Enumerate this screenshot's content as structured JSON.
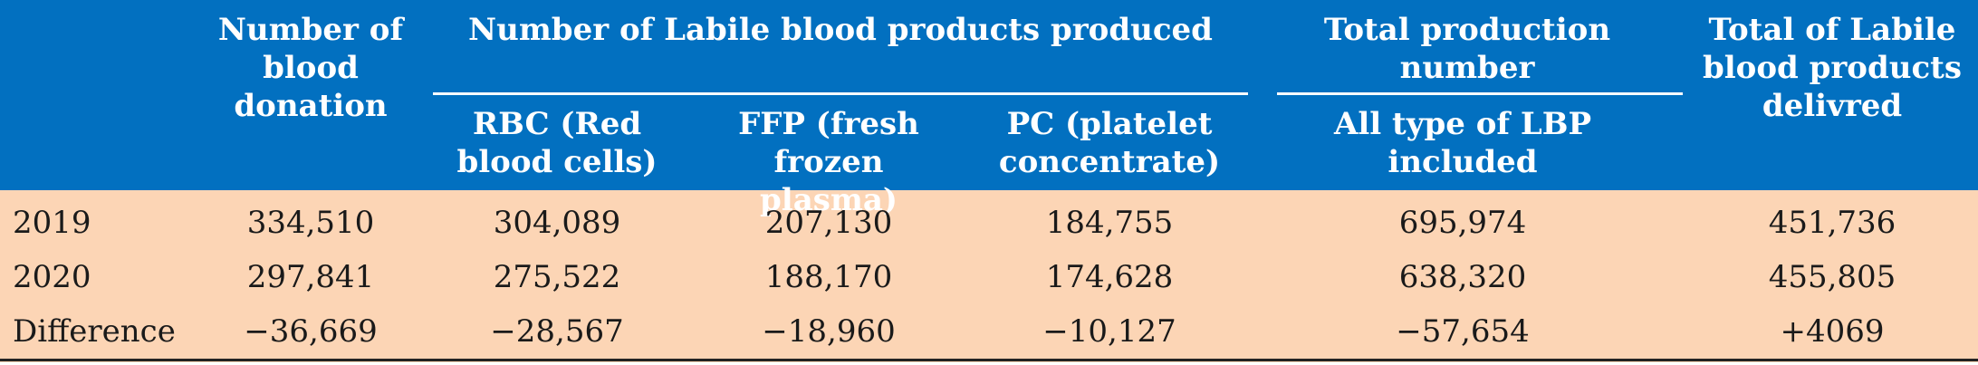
{
  "table": {
    "headers": {
      "donation": "Number of blood donation",
      "group_lbp": "Number of Labile blood products produced",
      "group_total": "Total production number",
      "delivered": "Total of Labile blood products delivred",
      "rbc": "RBC (Red blood cells)",
      "ffp": "FFP (fresh frozen plasma)",
      "pc": "PC (platelet concentrate)",
      "all_lbp": "All type of LBP included"
    },
    "rows": [
      {
        "label": "2019",
        "donation": "334,510",
        "rbc": "304,089",
        "ffp": "207,130",
        "pc": "184,755",
        "total": "695,974",
        "delivered": "451,736"
      },
      {
        "label": "2020",
        "donation": "297,841",
        "rbc": "275,522",
        "ffp": "188,170",
        "pc": "174,628",
        "total": "638,320",
        "delivered": "455,805"
      },
      {
        "label": "Difference",
        "donation": "−36,669",
        "rbc": "−28,567",
        "ffp": "−18,960",
        "pc": "−10,127",
        "total": "−57,654",
        "delivered": "+4069"
      }
    ],
    "colors": {
      "header_bg": "#0270c0",
      "body_bg": "#fcd5b5",
      "header_text": "#ffffff"
    }
  }
}
